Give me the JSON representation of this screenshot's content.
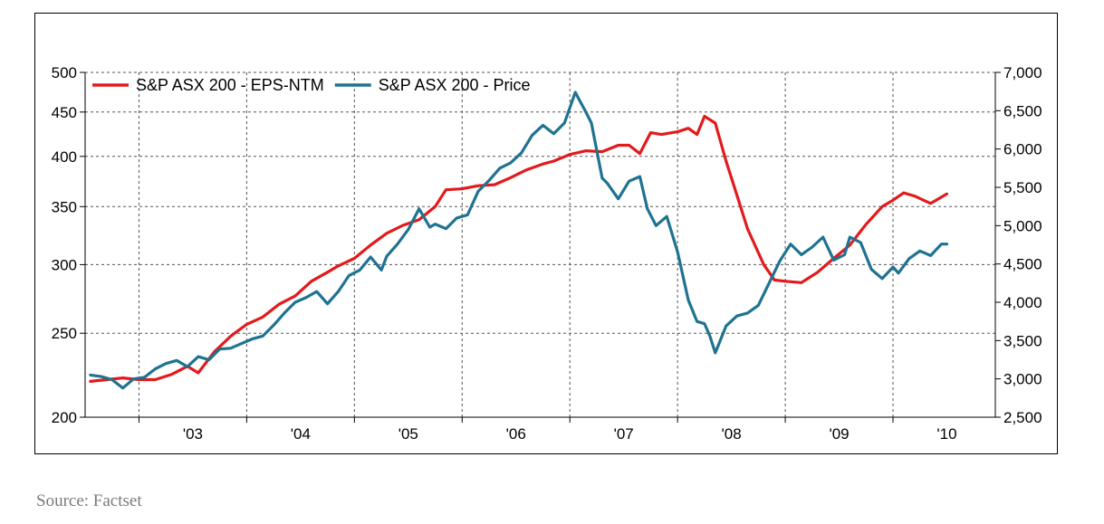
{
  "chart_data": {
    "type": "line",
    "title": "",
    "xlabel": "",
    "ylabel": "",
    "x_tick_labels": [
      "'03",
      "'04",
      "'05",
      "'06",
      "'07",
      "'08",
      "'09",
      "'10"
    ],
    "x_range": [
      2002.5,
      2010.95
    ],
    "y_left": {
      "ticks": [
        200,
        250,
        300,
        350,
        400,
        450,
        500
      ],
      "range": [
        200,
        500
      ],
      "scale": "log"
    },
    "y_right": {
      "ticks": [
        2500,
        3000,
        3500,
        4000,
        4500,
        5000,
        5500,
        6000,
        6500,
        7000
      ],
      "tick_labels": [
        "2,500",
        "3,000",
        "3,500",
        "4,000",
        "4,500",
        "5,000",
        "5,500",
        "6,000",
        "6,500",
        "7,000"
      ],
      "range": [
        2500,
        7000
      ],
      "scale": "linear"
    },
    "grid": true,
    "legend_position": "top-left",
    "series": [
      {
        "name": "S&P ASX 200 - EPS-NTM",
        "axis": "left",
        "color": "#e31a1c",
        "x": [
          2002.55,
          2002.7,
          2002.85,
          2003.0,
          2003.15,
          2003.3,
          2003.45,
          2003.55,
          2003.7,
          2003.85,
          2004.0,
          2004.15,
          2004.3,
          2004.45,
          2004.6,
          2004.75,
          2004.85,
          2005.0,
          2005.15,
          2005.3,
          2005.45,
          2005.6,
          2005.75,
          2005.85,
          2006.0,
          2006.15,
          2006.3,
          2006.45,
          2006.6,
          2006.75,
          2006.85,
          2007.0,
          2007.15,
          2007.3,
          2007.45,
          2007.55,
          2007.65,
          2007.75,
          2007.85,
          2008.0,
          2008.1,
          2008.18,
          2008.25,
          2008.35,
          2008.45,
          2008.55,
          2008.65,
          2008.8,
          2008.9,
          2009.0,
          2009.15,
          2009.3,
          2009.45,
          2009.6,
          2009.75,
          2009.9,
          2010.0,
          2010.1,
          2010.2,
          2010.35,
          2010.5
        ],
        "values": [
          220,
          221,
          222,
          221,
          221,
          224,
          229,
          225,
          238,
          248,
          256,
          261,
          270,
          276,
          287,
          294,
          299,
          305,
          316,
          326,
          333,
          338,
          350,
          366,
          367,
          370,
          371,
          378,
          386,
          392,
          395,
          402,
          406,
          405,
          412,
          412,
          403,
          426,
          424,
          427,
          431,
          424,
          445,
          437,
          395,
          361,
          330,
          300,
          288,
          287,
          286,
          294,
          305,
          316,
          334,
          350,
          356,
          363,
          360,
          353,
          362
        ]
      },
      {
        "name": "S&P ASX 200 - Price",
        "axis": "right",
        "color": "#1f7391",
        "x": [
          2002.55,
          2002.65,
          2002.75,
          2002.85,
          2002.95,
          2003.05,
          2003.15,
          2003.25,
          2003.35,
          2003.45,
          2003.55,
          2003.65,
          2003.75,
          2003.85,
          2003.95,
          2004.05,
          2004.15,
          2004.25,
          2004.35,
          2004.45,
          2004.55,
          2004.65,
          2004.75,
          2004.85,
          2004.95,
          2005.05,
          2005.15,
          2005.25,
          2005.3,
          2005.4,
          2005.5,
          2005.6,
          2005.7,
          2005.75,
          2005.85,
          2005.95,
          2006.05,
          2006.15,
          2006.25,
          2006.35,
          2006.45,
          2006.55,
          2006.65,
          2006.75,
          2006.85,
          2006.95,
          2007.05,
          2007.15,
          2007.2,
          2007.3,
          2007.35,
          2007.45,
          2007.55,
          2007.65,
          2007.72,
          2007.8,
          2007.9,
          2008.0,
          2008.1,
          2008.18,
          2008.25,
          2008.3,
          2008.35,
          2008.45,
          2008.55,
          2008.65,
          2008.75,
          2008.85,
          2008.95,
          2009.05,
          2009.15,
          2009.25,
          2009.35,
          2009.45,
          2009.55,
          2009.6,
          2009.7,
          2009.8,
          2009.9,
          2010.0,
          2010.05,
          2010.15,
          2010.25,
          2010.35,
          2010.45,
          2010.5
        ],
        "values": [
          3050,
          3030,
          2990,
          2880,
          3000,
          3020,
          3130,
          3200,
          3240,
          3160,
          3290,
          3250,
          3390,
          3400,
          3460,
          3520,
          3560,
          3700,
          3860,
          4000,
          4060,
          4140,
          3980,
          4140,
          4350,
          4420,
          4590,
          4420,
          4600,
          4760,
          4950,
          5220,
          4980,
          5020,
          4960,
          5100,
          5140,
          5450,
          5590,
          5750,
          5820,
          5950,
          6180,
          6310,
          6200,
          6340,
          6740,
          6480,
          6340,
          5620,
          5550,
          5350,
          5580,
          5640,
          5220,
          5000,
          5120,
          4660,
          4030,
          3750,
          3720,
          3560,
          3340,
          3690,
          3820,
          3860,
          3960,
          4250,
          4540,
          4760,
          4620,
          4720,
          4850,
          4550,
          4620,
          4850,
          4780,
          4430,
          4310,
          4460,
          4380,
          4570,
          4670,
          4610,
          4760,
          4760
        ]
      }
    ]
  },
  "source_note": "Source: Factset"
}
